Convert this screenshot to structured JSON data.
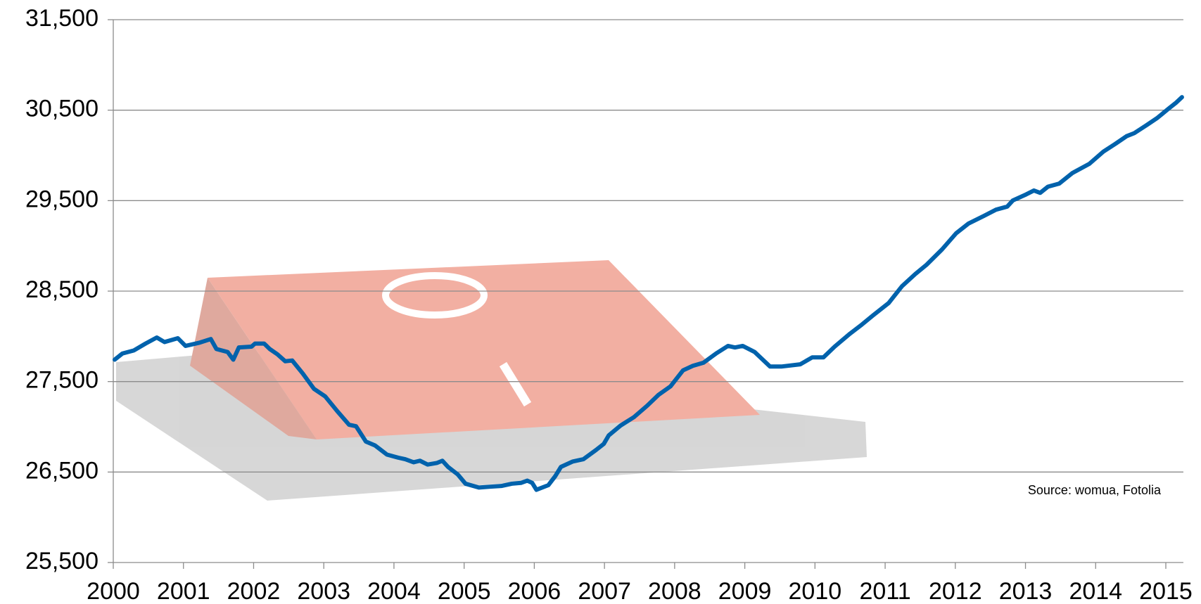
{
  "chart_data": {
    "type": "line",
    "annotations": [
      "Source: womua, Fotolia"
    ],
    "xlim": [
      2000,
      2015.25
    ],
    "xticks": [
      2000,
      2001,
      2002,
      2003,
      2004,
      2005,
      2006,
      2007,
      2008,
      2009,
      2010,
      2011,
      2012,
      2013,
      2014,
      2015
    ],
    "ylim": [
      25500,
      31500
    ],
    "yticks": [
      {
        "value": 25500,
        "label": "25,500"
      },
      {
        "value": 26500,
        "label": "26,500"
      },
      {
        "value": 27500,
        "label": "27,500"
      },
      {
        "value": 28500,
        "label": "28,500"
      },
      {
        "value": 29500,
        "label": "29,500"
      },
      {
        "value": 30500,
        "label": "30,500"
      },
      {
        "value": 31500,
        "label": "31,500"
      }
    ],
    "grid": true,
    "series": [
      {
        "color": "#0062ac",
        "x": [
          2000.02,
          2000.13,
          2000.29,
          2000.46,
          2000.62,
          2000.73,
          2000.92,
          2001.03,
          2001.22,
          2001.39,
          2001.47,
          2001.63,
          2001.71,
          2001.79,
          2001.97,
          2002.02,
          2002.15,
          2002.23,
          2002.34,
          2002.45,
          2002.55,
          2002.7,
          2002.86,
          2003.02,
          2003.19,
          2003.36,
          2003.46,
          2003.6,
          2003.73,
          2003.9,
          2004.06,
          2004.16,
          2004.28,
          2004.37,
          2004.48,
          2004.61,
          2004.69,
          2004.77,
          2004.91,
          2005.02,
          2005.21,
          2005.37,
          2005.53,
          2005.68,
          2005.81,
          2005.9,
          2005.97,
          2006.03,
          2006.2,
          2006.3,
          2006.38,
          2006.55,
          2006.7,
          2006.88,
          2006.99,
          2007.06,
          2007.23,
          2007.42,
          2007.61,
          2007.77,
          2007.94,
          2008.12,
          2008.26,
          2008.41,
          2008.59,
          2008.76,
          2008.86,
          2008.97,
          2009.14,
          2009.36,
          2009.52,
          2009.79,
          2009.96,
          2010.12,
          2010.28,
          2010.5,
          2010.67,
          2010.83,
          2011.05,
          2011.24,
          2011.43,
          2011.59,
          2011.81,
          2012.01,
          2012.19,
          2012.41,
          2012.58,
          2012.74,
          2012.82,
          2013.01,
          2013.12,
          2013.21,
          2013.32,
          2013.48,
          2013.67,
          2013.91,
          2014.11,
          2014.28,
          2014.44,
          2014.55,
          2014.72,
          2014.88,
          2015.04,
          2015.15,
          2015.23
        ],
        "values": [
          27742,
          27810,
          27843,
          27920,
          27987,
          27937,
          27979,
          27894,
          27928,
          27970,
          27860,
          27827,
          27742,
          27877,
          27886,
          27920,
          27920,
          27860,
          27801,
          27725,
          27733,
          27590,
          27420,
          27336,
          27175,
          27023,
          27006,
          26837,
          26794,
          26693,
          26659,
          26642,
          26608,
          26625,
          26583,
          26600,
          26625,
          26557,
          26473,
          26371,
          26329,
          26338,
          26346,
          26371,
          26380,
          26405,
          26380,
          26304,
          26355,
          26456,
          26557,
          26617,
          26642,
          26744,
          26811,
          26904,
          27014,
          27107,
          27234,
          27353,
          27446,
          27624,
          27674,
          27708,
          27810,
          27894,
          27877,
          27894,
          27827,
          27666,
          27666,
          27691,
          27767,
          27767,
          27886,
          28030,
          28131,
          28233,
          28368,
          28554,
          28689,
          28791,
          28960,
          29138,
          29248,
          29332,
          29400,
          29434,
          29502,
          29569,
          29612,
          29586,
          29654,
          29688,
          29806,
          29907,
          30042,
          30127,
          30212,
          30246,
          30331,
          30415,
          30517,
          30585,
          30644
        ]
      }
    ]
  }
}
